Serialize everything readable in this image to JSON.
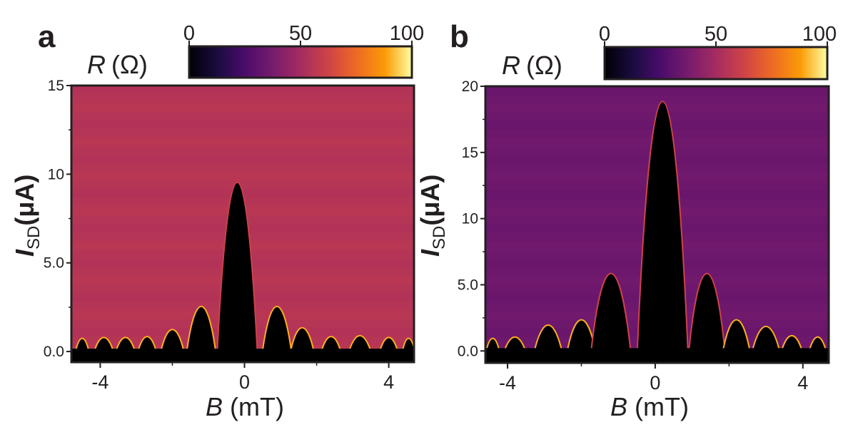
{
  "chart_data": [
    {
      "type": "heatmap",
      "panel_label": "a",
      "colorbar": {
        "title_var": "R",
        "title_unit": "(Ω)",
        "ticks": [
          "0",
          "50",
          "100"
        ],
        "range": [
          0,
          100
        ]
      },
      "xlabel_var": "B",
      "xlabel_unit": "(mT)",
      "ylabel_var": "I",
      "ylabel_sub": "SD",
      "ylabel_unit": "(μA)",
      "xlim": [
        -4.8,
        4.7
      ],
      "ylim": [
        -0.6,
        15
      ],
      "xticks": [
        {
          "v": -4,
          "t": "-4"
        },
        {
          "v": 0,
          "t": "0"
        },
        {
          "v": 4,
          "t": "4"
        }
      ],
      "yticks": [
        {
          "v": 0,
          "t": "0.0"
        },
        {
          "v": 5,
          "t": "5.0"
        },
        {
          "v": 10,
          "t": "10"
        },
        {
          "v": 15,
          "t": "15"
        }
      ],
      "background_resistance": 55,
      "zero_resistance_lobes": [
        {
          "center": -4.5,
          "half_width": 0.22,
          "height": 0.7
        },
        {
          "center": -3.9,
          "half_width": 0.32,
          "height": 0.75
        },
        {
          "center": -3.3,
          "half_width": 0.32,
          "height": 0.75
        },
        {
          "center": -2.7,
          "half_width": 0.3,
          "height": 0.8
        },
        {
          "center": -2.0,
          "half_width": 0.36,
          "height": 1.2
        },
        {
          "center": -1.2,
          "half_width": 0.42,
          "height": 2.5
        },
        {
          "center": -0.2,
          "half_width": 0.55,
          "height": 9.5
        },
        {
          "center": 0.9,
          "half_width": 0.42,
          "height": 2.5
        },
        {
          "center": 1.6,
          "half_width": 0.36,
          "height": 1.3
        },
        {
          "center": 2.4,
          "half_width": 0.32,
          "height": 0.8
        },
        {
          "center": 3.2,
          "half_width": 0.36,
          "height": 0.85
        },
        {
          "center": 4.0,
          "half_width": 0.3,
          "height": 0.75
        },
        {
          "center": 4.55,
          "half_width": 0.2,
          "height": 0.7
        }
      ]
    },
    {
      "type": "heatmap",
      "panel_label": "b",
      "colorbar": {
        "title_var": "R",
        "title_unit": "(Ω)",
        "ticks": [
          "0",
          "50",
          "100"
        ],
        "range": [
          0,
          100
        ]
      },
      "xlabel_var": "B",
      "xlabel_unit": "(mT)",
      "ylabel_var": "I",
      "ylabel_sub": "SD",
      "ylabel_unit": "(μA)",
      "xlim": [
        -4.6,
        4.7
      ],
      "ylim": [
        -0.9,
        20
      ],
      "xticks": [
        {
          "v": -4,
          "t": "-4"
        },
        {
          "v": 0,
          "t": "0"
        },
        {
          "v": 4,
          "t": "4"
        }
      ],
      "yticks": [
        {
          "v": 0,
          "t": "0.0"
        },
        {
          "v": 5,
          "t": "5.0"
        },
        {
          "v": 10,
          "t": "10"
        },
        {
          "v": 15,
          "t": "15"
        },
        {
          "v": 20,
          "t": "20"
        }
      ],
      "background_resistance": 35,
      "zero_resistance_lobes": [
        {
          "center": -4.4,
          "half_width": 0.22,
          "height": 0.9
        },
        {
          "center": -3.8,
          "half_width": 0.36,
          "height": 1.0
        },
        {
          "center": -2.9,
          "half_width": 0.42,
          "height": 1.9
        },
        {
          "center": -2.0,
          "half_width": 0.42,
          "height": 2.3
        },
        {
          "center": -1.2,
          "half_width": 0.55,
          "height": 5.8
        },
        {
          "center": 0.2,
          "half_width": 0.68,
          "height": 18.8
        },
        {
          "center": 1.4,
          "half_width": 0.5,
          "height": 5.8
        },
        {
          "center": 2.2,
          "half_width": 0.4,
          "height": 2.3
        },
        {
          "center": 3.0,
          "half_width": 0.42,
          "height": 1.8
        },
        {
          "center": 3.7,
          "half_width": 0.34,
          "height": 1.1
        },
        {
          "center": 4.4,
          "half_width": 0.28,
          "height": 1.0
        }
      ]
    }
  ]
}
